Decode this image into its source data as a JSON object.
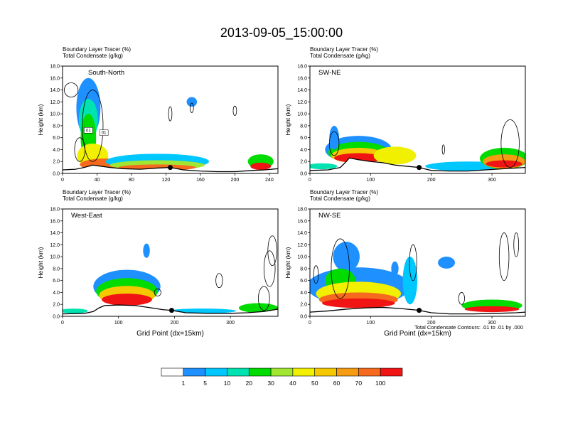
{
  "title": "2013-09-05_15:00:00",
  "colors": {
    "palette": [
      "#ffffff",
      "#1e90ff",
      "#00c8ff",
      "#00e3b0",
      "#00dc00",
      "#a0e632",
      "#f0f000",
      "#f5c800",
      "#f59b14",
      "#f56a1e",
      "#f01414"
    ],
    "contour": "#000000",
    "terrain": "#000000"
  },
  "colorbar": {
    "labels": [
      "1",
      "5",
      "10",
      "20",
      "30",
      "40",
      "50",
      "60",
      "70",
      "100"
    ]
  },
  "contour_note": "Total Condensate Contours: .01 to .01 by .000",
  "chart_data": [
    {
      "type": "heatmap",
      "label": "South-North",
      "header_line1": "Boundary Layer Tracer   (%)",
      "header_line2": "Total Condensate   (g/kg)",
      "ylabel": "Height (km)",
      "xlabel": "",
      "xlim": [
        0,
        250
      ],
      "ylim": [
        0,
        18
      ],
      "x_ticks": [
        "0",
        "40",
        "80",
        "120",
        "160",
        "200",
        "240"
      ],
      "x_tick_values": [
        0,
        40,
        80,
        120,
        160,
        200,
        240
      ],
      "y_ticks": [
        "0.0",
        "2.0",
        "4.0",
        "6.0",
        "8.0",
        "10.0",
        "12.0",
        "14.0",
        "16.0",
        "18.0"
      ],
      "marker_x": 125,
      "contour_labels": [
        "01",
        "01"
      ],
      "terrain": [
        [
          0,
          0.6
        ],
        [
          15,
          0.7
        ],
        [
          25,
          1.0
        ],
        [
          35,
          1.4
        ],
        [
          45,
          1.2
        ],
        [
          55,
          1.0
        ],
        [
          70,
          0.8
        ],
        [
          90,
          0.7
        ],
        [
          110,
          0.9
        ],
        [
          125,
          1.0
        ],
        [
          140,
          0.6
        ],
        [
          160,
          0.4
        ],
        [
          180,
          0.3
        ],
        [
          200,
          0.3
        ],
        [
          220,
          0.5
        ],
        [
          235,
          0.6
        ],
        [
          250,
          0.8
        ]
      ]
    },
    {
      "type": "heatmap",
      "label": "SW-NE",
      "header_line1": "Boundary Layer Tracer   (%)",
      "header_line2": "Total Condensate   (g/kg)",
      "ylabel": "Height (km)",
      "xlabel": "",
      "xlim": [
        0,
        355
      ],
      "ylim": [
        0,
        18
      ],
      "x_ticks": [
        "0",
        "100",
        "200",
        "300"
      ],
      "x_tick_values": [
        0,
        100,
        200,
        300
      ],
      "y_ticks": [
        "0.0",
        "2.0",
        "4.0",
        "6.0",
        "8.0",
        "10.0",
        "12.0",
        "14.0",
        "16.0",
        "18.0"
      ],
      "marker_x": 180,
      "contour_labels": [],
      "terrain": [
        [
          0,
          0.5
        ],
        [
          30,
          0.6
        ],
        [
          50,
          1.0
        ],
        [
          60,
          2.0
        ],
        [
          65,
          2.6
        ],
        [
          80,
          2.3
        ],
        [
          100,
          2.0
        ],
        [
          120,
          1.8
        ],
        [
          140,
          1.4
        ],
        [
          160,
          1.2
        ],
        [
          180,
          1.0
        ],
        [
          200,
          0.5
        ],
        [
          230,
          0.4
        ],
        [
          260,
          0.4
        ],
        [
          290,
          0.6
        ],
        [
          320,
          0.8
        ],
        [
          355,
          1.0
        ]
      ]
    },
    {
      "type": "heatmap",
      "label": "West-East",
      "header_line1": "Boundary Layer Tracer   (%)",
      "header_line2": "Total Condensate   (g/kg)",
      "ylabel": "Height (km)",
      "xlabel": "Grid Point (dx=15km)",
      "xlim": [
        0,
        385
      ],
      "ylim": [
        0,
        18
      ],
      "x_ticks": [
        "0",
        "100",
        "200",
        "300"
      ],
      "x_tick_values": [
        0,
        100,
        200,
        300
      ],
      "y_ticks": [
        "0.0",
        "2.0",
        "4.0",
        "6.0",
        "8.0",
        "10.0",
        "12.0",
        "14.0",
        "16.0",
        "18.0"
      ],
      "marker_x": 195,
      "contour_labels": [],
      "terrain": [
        [
          0,
          0.4
        ],
        [
          40,
          0.5
        ],
        [
          55,
          0.8
        ],
        [
          65,
          1.4
        ],
        [
          75,
          1.8
        ],
        [
          100,
          1.9
        ],
        [
          130,
          1.8
        ],
        [
          160,
          1.4
        ],
        [
          180,
          1.1
        ],
        [
          195,
          1.0
        ],
        [
          220,
          0.6
        ],
        [
          260,
          0.5
        ],
        [
          300,
          0.5
        ],
        [
          330,
          0.6
        ],
        [
          360,
          0.8
        ],
        [
          385,
          1.2
        ]
      ]
    },
    {
      "type": "heatmap",
      "label": "NW-SE",
      "header_line1": "Boundary Layer Tracer   (%)",
      "header_line2": "Total Condensate   (g/kg)",
      "ylabel": "Height (km)",
      "xlabel": "Grid Point (dx=15km)",
      "xlim": [
        0,
        355
      ],
      "ylim": [
        0,
        18
      ],
      "x_ticks": [
        "0",
        "100",
        "200",
        "300"
      ],
      "x_tick_values": [
        0,
        100,
        200,
        300
      ],
      "y_ticks": [
        "0.0",
        "2.0",
        "4.0",
        "6.0",
        "8.0",
        "10.0",
        "12.0",
        "14.0",
        "16.0",
        "18.0"
      ],
      "marker_x": 180,
      "contour_labels": [],
      "terrain": [
        [
          0,
          0.7
        ],
        [
          30,
          0.9
        ],
        [
          60,
          1.2
        ],
        [
          90,
          1.4
        ],
        [
          120,
          1.5
        ],
        [
          150,
          1.3
        ],
        [
          170,
          1.1
        ],
        [
          180,
          1.0
        ],
        [
          200,
          0.6
        ],
        [
          230,
          0.4
        ],
        [
          270,
          0.4
        ],
        [
          310,
          0.5
        ],
        [
          340,
          0.6
        ],
        [
          355,
          0.7
        ]
      ]
    }
  ]
}
